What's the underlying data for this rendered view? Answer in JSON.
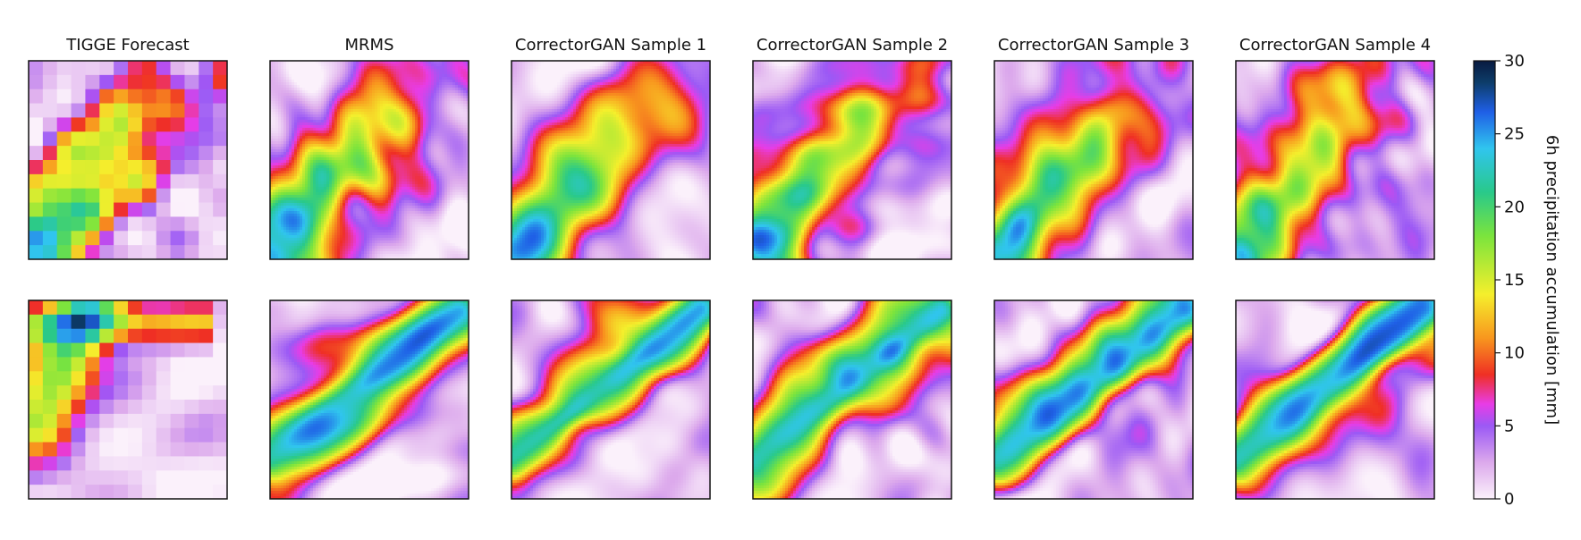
{
  "chart_data": {
    "type": "heatmap",
    "columns": [
      {
        "title": "TIGGE Forecast"
      },
      {
        "title": "MRMS"
      },
      {
        "title": "CorrectorGAN Sample 1"
      },
      {
        "title": "CorrectorGAN Sample 2"
      },
      {
        "title": "CorrectorGAN Sample 3"
      },
      {
        "title": "CorrectorGAN Sample 4"
      }
    ],
    "rows": 2,
    "colorbar": {
      "label": "6h precipitation accumulation [mm]",
      "range": [
        0,
        30
      ],
      "ticks": [
        "0",
        "5",
        "10",
        "15",
        "20",
        "25",
        "30"
      ],
      "tick_values": [
        0,
        5,
        10,
        15,
        20,
        25,
        30
      ],
      "stops": [
        {
          "v": 0,
          "c": "#fbf1fb"
        },
        {
          "v": 2.5,
          "c": "#dca9ec"
        },
        {
          "v": 5,
          "c": "#9b59f5"
        },
        {
          "v": 6.5,
          "c": "#e83ce6"
        },
        {
          "v": 8.5,
          "c": "#ef2f24"
        },
        {
          "v": 11,
          "c": "#f8961e"
        },
        {
          "v": 14,
          "c": "#f5ef2c"
        },
        {
          "v": 18,
          "c": "#7be43d"
        },
        {
          "v": 21,
          "c": "#29c98a"
        },
        {
          "v": 24,
          "c": "#30c5ee"
        },
        {
          "v": 26.5,
          "c": "#1f5fe6"
        },
        {
          "v": 28.5,
          "c": "#0d3d6a"
        },
        {
          "v": 30,
          "c": "#081a40"
        }
      ]
    }
  }
}
